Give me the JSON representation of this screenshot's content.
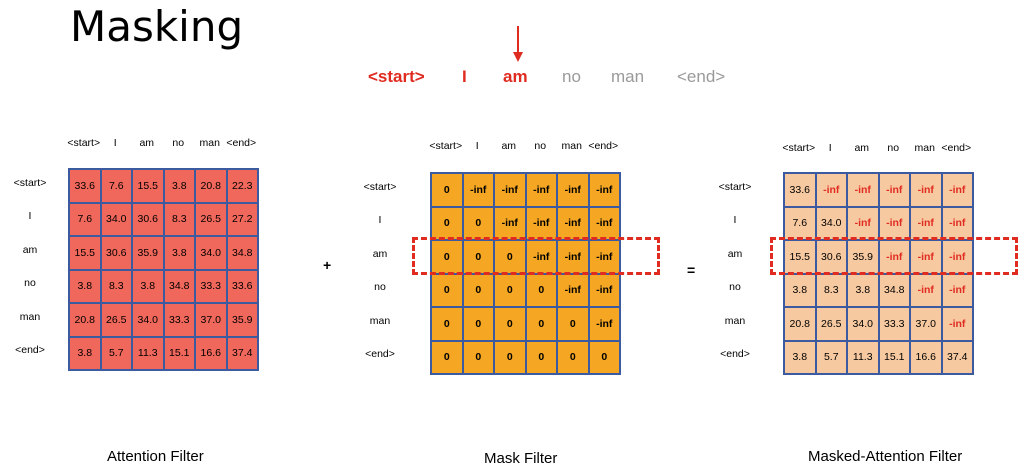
{
  "title": "Masking",
  "sentence": [
    {
      "text": "<start>",
      "state": "active"
    },
    {
      "text": "I",
      "state": "active"
    },
    {
      "text": "am",
      "state": "active"
    },
    {
      "text": "no",
      "state": "inactive"
    },
    {
      "text": "man",
      "state": "inactive"
    },
    {
      "text": "<end>",
      "state": "inactive"
    }
  ],
  "labels": [
    "<start>",
    "I",
    "am",
    "no",
    "man",
    "<end>"
  ],
  "operators": {
    "plus": "+",
    "equals": "="
  },
  "matrices": {
    "attention": {
      "caption": "Attention Filter",
      "rows": [
        [
          "33.6",
          "7.6",
          "15.5",
          "3.8",
          "20.8",
          "22.3"
        ],
        [
          "7.6",
          "34.0",
          "30.6",
          "8.3",
          "26.5",
          "27.2"
        ],
        [
          "15.5",
          "30.6",
          "35.9",
          "3.8",
          "34.0",
          "34.8"
        ],
        [
          "3.8",
          "8.3",
          "3.8",
          "34.8",
          "33.3",
          "33.6"
        ],
        [
          "20.8",
          "26.5",
          "34.0",
          "33.3",
          "37.0",
          "35.9"
        ],
        [
          "3.8",
          "5.7",
          "11.3",
          "15.1",
          "16.6",
          "37.4"
        ]
      ]
    },
    "mask": {
      "caption": "Mask Filter",
      "rows": [
        [
          "0",
          "-inf",
          "-inf",
          "-inf",
          "-inf",
          "-inf"
        ],
        [
          "0",
          "0",
          "-inf",
          "-inf",
          "-inf",
          "-inf"
        ],
        [
          "0",
          "0",
          "0",
          "-inf",
          "-inf",
          "-inf"
        ],
        [
          "0",
          "0",
          "0",
          "0",
          "-inf",
          "-inf"
        ],
        [
          "0",
          "0",
          "0",
          "0",
          "0",
          "-inf"
        ],
        [
          "0",
          "0",
          "0",
          "0",
          "0",
          "0"
        ]
      ]
    },
    "masked": {
      "caption": "Masked-Attention Filter",
      "rows": [
        [
          "33.6",
          "-inf",
          "-inf",
          "-inf",
          "-inf",
          "-inf"
        ],
        [
          "7.6",
          "34.0",
          "-inf",
          "-inf",
          "-inf",
          "-inf"
        ],
        [
          "15.5",
          "30.6",
          "35.9",
          "-inf",
          "-inf",
          "-inf"
        ],
        [
          "3.8",
          "8.3",
          "3.8",
          "34.8",
          "-inf",
          "-inf"
        ],
        [
          "20.8",
          "26.5",
          "34.0",
          "33.3",
          "37.0",
          "-inf"
        ],
        [
          "3.8",
          "5.7",
          "11.3",
          "15.1",
          "16.6",
          "37.4"
        ]
      ]
    }
  },
  "highlight_row": "am",
  "colors": {
    "attention_cell": "#f0675b",
    "mask_cell": "#f5a623",
    "masked_cell": "#f7c9a0",
    "highlight": "#e02b20",
    "grid_border": "#3c5aa0"
  }
}
